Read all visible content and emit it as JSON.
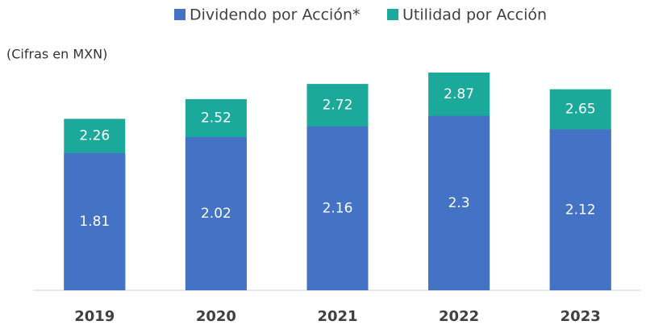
{
  "chart_data": {
    "type": "bar",
    "overlap": true,
    "subtitle": "(Cifras en MXN)",
    "categories": [
      "2019",
      "2020",
      "2021",
      "2022",
      "2023"
    ],
    "series": [
      {
        "name": "Utilidad por Acción",
        "color": "#1ba99b",
        "values": [
          2.26,
          2.52,
          2.72,
          2.87,
          2.65
        ]
      },
      {
        "name": "Dividendo por Acción*",
        "color": "#4472c4",
        "values": [
          1.81,
          2.02,
          2.16,
          2.3,
          2.12
        ]
      }
    ],
    "legend_order": [
      1,
      0
    ],
    "legend": "top"
  }
}
